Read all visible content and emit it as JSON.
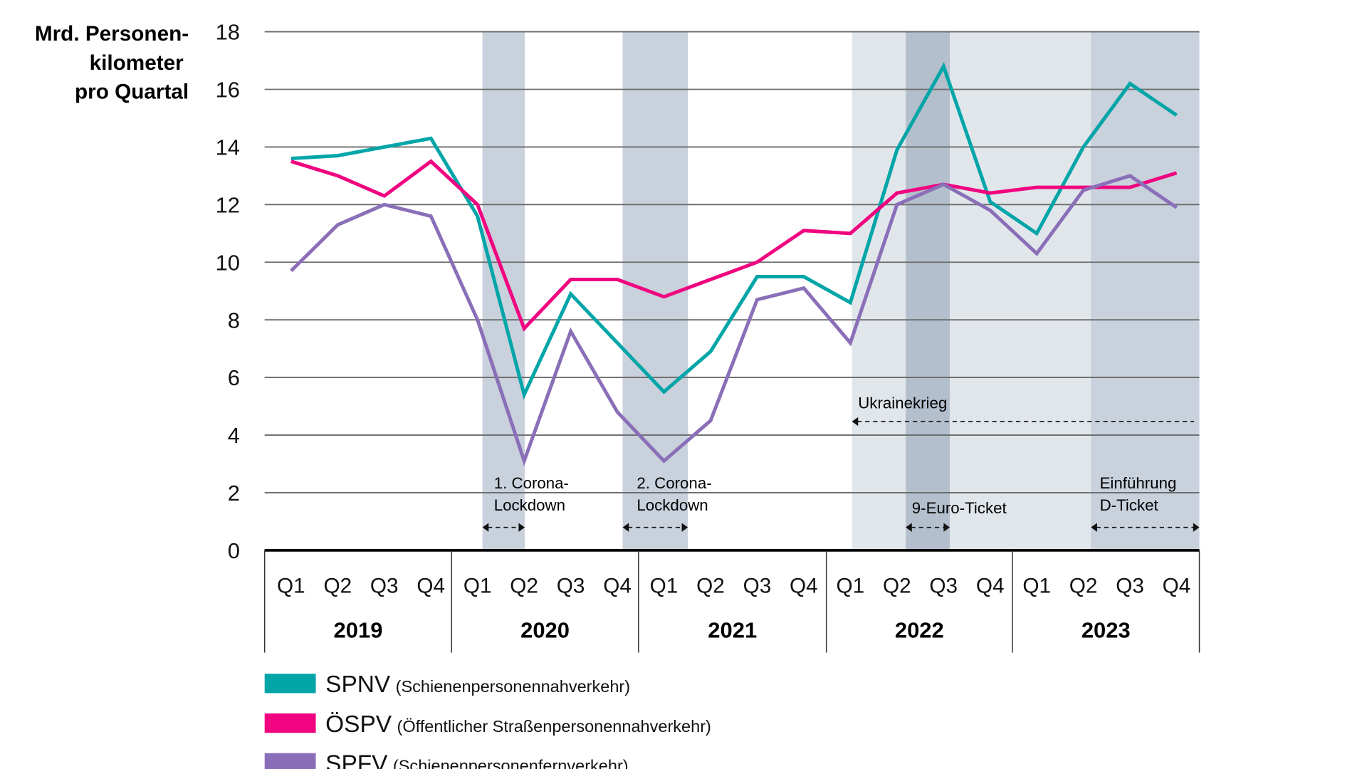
{
  "chart_data": {
    "type": "line",
    "ylabel_lines": [
      "Mrd. Personen-",
      "kilometer",
      "pro Quartal"
    ],
    "ylim": [
      0,
      18
    ],
    "yticks": [
      "0",
      "2",
      "4",
      "6",
      "8",
      "10",
      "12",
      "14",
      "16",
      "18"
    ],
    "grid": true,
    "years": [
      "2019",
      "2020",
      "2021",
      "2022",
      "2023"
    ],
    "quarters": [
      "Q1",
      "Q2",
      "Q3",
      "Q4"
    ],
    "series": [
      {
        "name": "SPNV",
        "long": "(Schienenpersonennahverkehr)",
        "color": "#00a5a8",
        "values": [
          13.6,
          13.7,
          14.0,
          14.3,
          11.6,
          5.4,
          8.9,
          7.2,
          5.5,
          6.9,
          9.5,
          9.5,
          8.6,
          13.9,
          16.8,
          12.1,
          11.0,
          14.0,
          16.2,
          15.1
        ]
      },
      {
        "name": "ÖSPV",
        "long": "(Öffentlicher Straßenpersonennahverkehr)",
        "color": "#f0047f",
        "values": [
          13.5,
          13.0,
          12.3,
          13.5,
          12.0,
          7.7,
          9.4,
          9.4,
          8.8,
          9.4,
          10.0,
          11.1,
          11.0,
          12.4,
          12.7,
          12.4,
          12.6,
          12.6,
          12.6,
          13.1
        ]
      },
      {
        "name": "SPFV",
        "long": "(Schienenpersonenfernverkehr)",
        "color": "#8a6fb8",
        "values": [
          9.7,
          11.3,
          12.0,
          11.6,
          8.0,
          3.1,
          7.6,
          4.8,
          3.1,
          4.5,
          8.7,
          9.1,
          7.2,
          12.0,
          12.7,
          11.8,
          10.3,
          12.5,
          13.0,
          11.9
        ]
      }
    ],
    "annotations": [
      {
        "lines": [
          "1. Corona-",
          "Lockdown"
        ]
      },
      {
        "lines": [
          "2. Corona-",
          "Lockdown"
        ]
      },
      {
        "lines": [
          "Ukrainekrieg"
        ]
      },
      {
        "lines": [
          "9-Euro-Ticket"
        ]
      },
      {
        "lines": [
          "Einführung",
          "D-Ticket"
        ]
      }
    ],
    "band_colors": {
      "light": "#e1e6eb",
      "medium": "#c9d1dc",
      "dark": "#b3bfcc"
    }
  }
}
